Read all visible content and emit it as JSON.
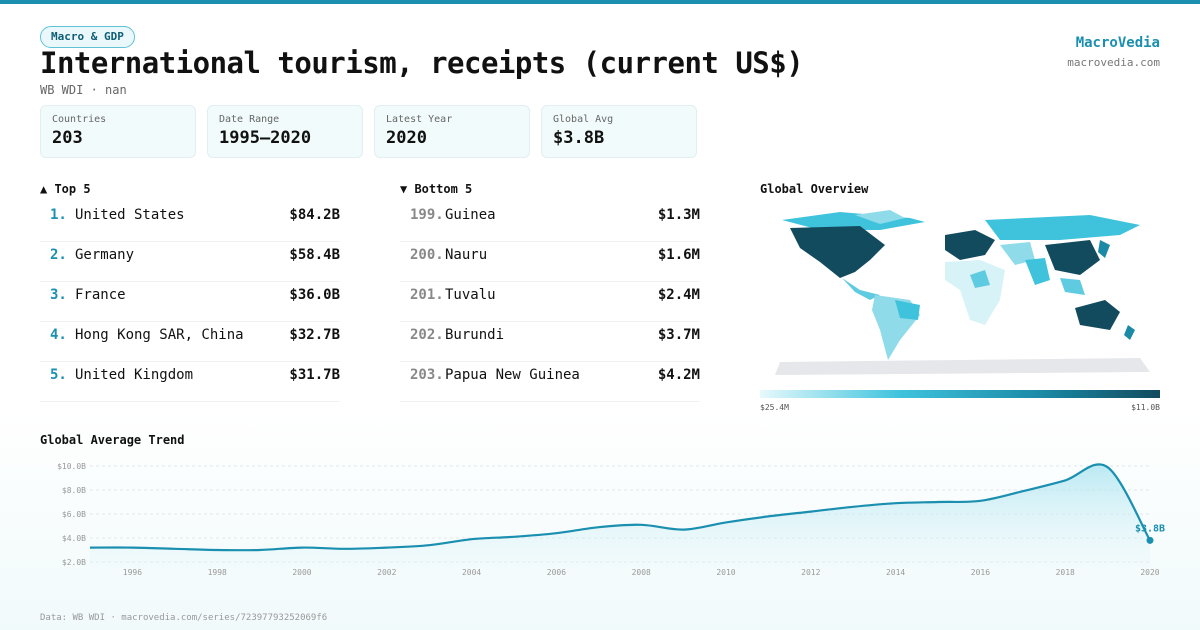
{
  "header": {
    "badge": "Macro & GDP",
    "title": "International tourism, receipts (current US$)",
    "subtitle": "WB WDI · nan",
    "brand": "MacroVedia",
    "site": "macrovedia.com"
  },
  "stats": [
    {
      "label": "Countries",
      "value": "203"
    },
    {
      "label": "Date Range",
      "value": "1995–2020"
    },
    {
      "label": "Latest Year",
      "value": "2020"
    },
    {
      "label": "Global Avg",
      "value": "$3.8B"
    }
  ],
  "top": {
    "title": "▲ Top 5",
    "rows": [
      {
        "rank": "1.",
        "name": "United States",
        "value": "$84.2B"
      },
      {
        "rank": "2.",
        "name": "Germany",
        "value": "$58.4B"
      },
      {
        "rank": "3.",
        "name": "France",
        "value": "$36.0B"
      },
      {
        "rank": "4.",
        "name": "Hong Kong SAR, China",
        "value": "$32.7B"
      },
      {
        "rank": "5.",
        "name": "United Kingdom",
        "value": "$31.7B"
      }
    ]
  },
  "bottom": {
    "title": "▼ Bottom 5",
    "rows": [
      {
        "rank": "199.",
        "name": "Guinea",
        "value": "$1.3M"
      },
      {
        "rank": "200.",
        "name": "Nauru",
        "value": "$1.6M"
      },
      {
        "rank": "201.",
        "name": "Tuvalu",
        "value": "$2.4M"
      },
      {
        "rank": "202.",
        "name": "Burundi",
        "value": "$3.7M"
      },
      {
        "rank": "203.",
        "name": "Papua New Guinea",
        "value": "$4.2M"
      }
    ]
  },
  "map": {
    "title": "Global Overview",
    "scale_min": "$25.4M",
    "scale_max": "$11.0B"
  },
  "chart_data": {
    "type": "line",
    "title": "Global Average Trend",
    "x": [
      1995,
      1996,
      1997,
      1998,
      1999,
      2000,
      2001,
      2002,
      2003,
      2004,
      2005,
      2006,
      2007,
      2008,
      2009,
      2010,
      2011,
      2012,
      2013,
      2014,
      2015,
      2016,
      2017,
      2018,
      2019,
      2020
    ],
    "series": [
      {
        "color": "#1a8fb0",
        "values": [
          3.2,
          3.2,
          3.1,
          3.0,
          3.0,
          3.2,
          3.1,
          3.2,
          3.4,
          3.9,
          4.1,
          4.4,
          4.9,
          5.1,
          4.7,
          5.3,
          5.8,
          6.2,
          6.6,
          6.9,
          7.0,
          7.1,
          7.9,
          8.8,
          9.9,
          3.8
        ],
        "value_labels": [
          null,
          null,
          null,
          null,
          null,
          null,
          null,
          null,
          null,
          null,
          null,
          null,
          null,
          null,
          null,
          null,
          null,
          null,
          null,
          null,
          null,
          null,
          null,
          null,
          null,
          "$3.8B"
        ]
      }
    ],
    "xlim": [
      1995,
      2020
    ],
    "xticks": [
      1996,
      1998,
      2000,
      2002,
      2004,
      2006,
      2008,
      2010,
      2012,
      2014,
      2016,
      2018,
      2020
    ],
    "ylim": [
      1.5,
      10.5
    ],
    "yticks": [
      {
        "value": 2,
        "label": "$2.0B"
      },
      {
        "value": 4,
        "label": "$4.0B"
      },
      {
        "value": 6,
        "label": "$6.0B"
      },
      {
        "value": 8,
        "label": "$8.0B"
      },
      {
        "value": 10,
        "label": "$10.0B"
      }
    ],
    "grid": true
  },
  "footer": "Data: WB WDI · macrovedia.com/series/72397793252069f6"
}
